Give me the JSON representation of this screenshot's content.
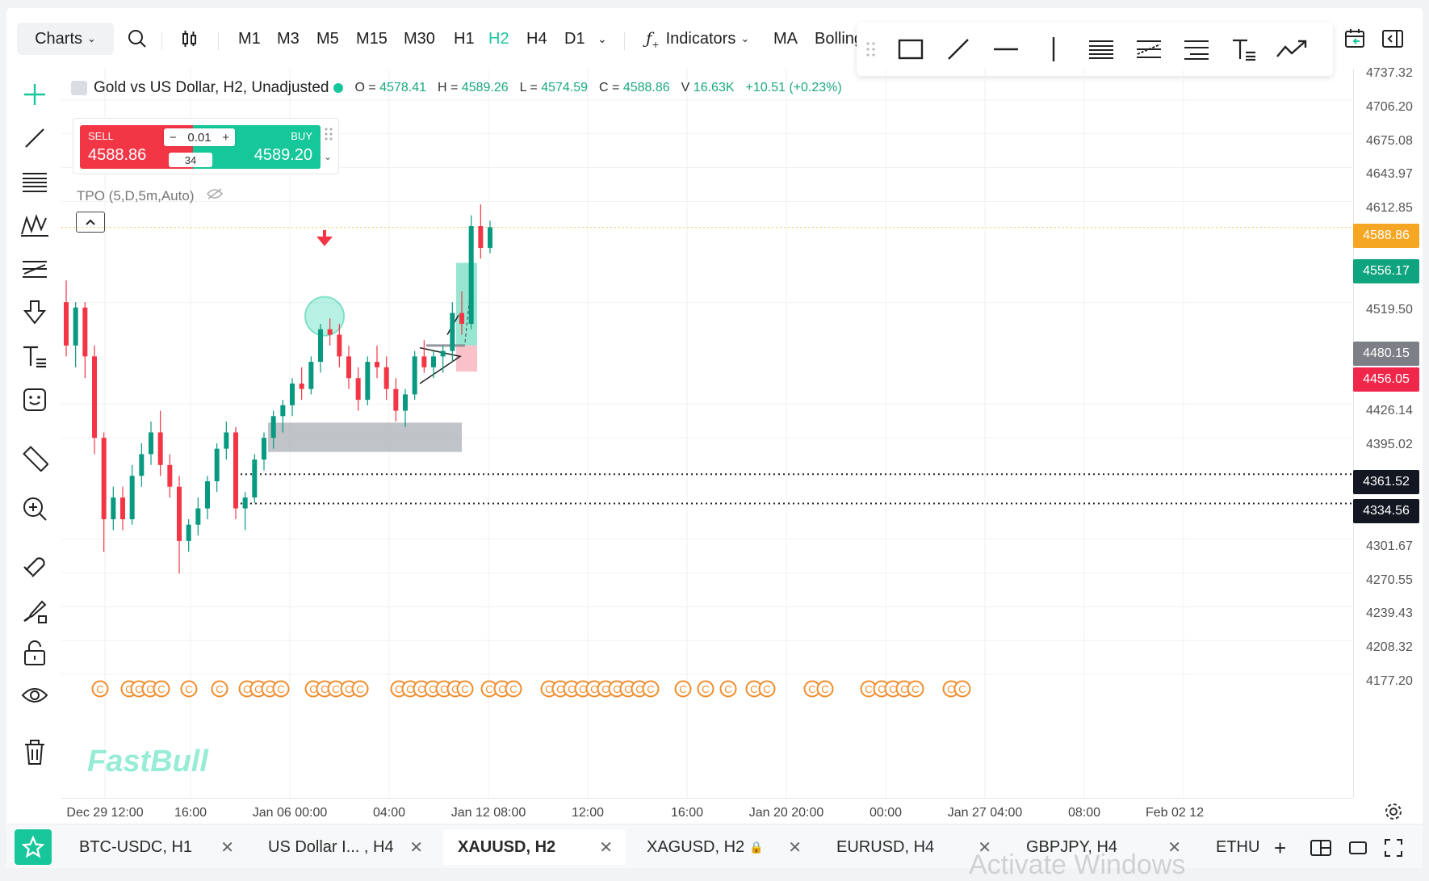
{
  "topbar": {
    "charts_label": "Charts",
    "timeframes": [
      "M1",
      "M3",
      "M5",
      "M15",
      "M30",
      "H1",
      "H2",
      "H4",
      "D1"
    ],
    "active_timeframe": "H2",
    "indicators_label": "Indicators",
    "ma_label": "MA",
    "bollinger_label": "Bolling"
  },
  "legend": {
    "symbol": "Gold vs US Dollar, H2, Unadjusted",
    "open_label": "O =",
    "open": "4578.41",
    "high_label": "H =",
    "high": "4589.26",
    "low_label": "L =",
    "low": "4574.59",
    "close_label": "C =",
    "close": "4588.86",
    "volume_label": "V",
    "volume": "16.63K",
    "change": "+10.51 (+0.23%)"
  },
  "trade": {
    "sell_label": "SELL",
    "sell_price": "4588.86",
    "buy_label": "BUY",
    "buy_price": "4589.20",
    "quantity": "0.01",
    "spread": "34"
  },
  "tpo_label": "TPO (5,D,5m,Auto)",
  "watermark": "FastBull",
  "price_axis": [
    "4737.32",
    "4706.20",
    "4675.08",
    "4643.97",
    "4612.85",
    "4519.50",
    "4426.14",
    "4395.02",
    "4301.67",
    "4270.55",
    "4239.43",
    "4208.32",
    "4177.20"
  ],
  "price_tags": [
    {
      "value": "4588.86",
      "color": "#f5a623"
    },
    {
      "value": "4556.17",
      "color": "#0fa37f"
    },
    {
      "value": "4480.15",
      "color": "#7c7f86"
    },
    {
      "value": "4456.05",
      "color": "#f0264a"
    },
    {
      "value": "4361.52",
      "color": "#131722"
    },
    {
      "value": "4334.56",
      "color": "#131722"
    }
  ],
  "time_axis": [
    "Dec 29 12:00",
    "16:00",
    "Jan 06 00:00",
    "04:00",
    "Jan 12 08:00",
    "12:00",
    "16:00",
    "Jan 20 20:00",
    "00:00",
    "Jan 27 04:00",
    "08:00",
    "Feb 02 12"
  ],
  "tabs": [
    "BTC-USDC, H1",
    "US Dollar I... , H4",
    "XAUUSD, H2",
    "XAGUSD, H2",
    "EURUSD, H4",
    "GBPJPY, H4",
    "ETHU"
  ],
  "active_tab": "XAUUSD, H2",
  "os_watermark": "Activate Windows",
  "colors": {
    "up": "#089981",
    "down": "#f23645",
    "accent": "#1fc7a2"
  },
  "chart_data": {
    "type": "candlestick",
    "title": "Gold vs US Dollar, H2, Unadjusted",
    "ylim": [
      4150,
      4750
    ],
    "candles": [
      [
        4520,
        4540,
        4470,
        4480
      ],
      [
        4480,
        4520,
        4460,
        4515
      ],
      [
        4515,
        4520,
        4450,
        4470
      ],
      [
        4470,
        4480,
        4380,
        4395
      ],
      [
        4395,
        4400,
        4290,
        4320
      ],
      [
        4320,
        4350,
        4310,
        4340
      ],
      [
        4340,
        4350,
        4310,
        4320
      ],
      [
        4320,
        4370,
        4315,
        4360
      ],
      [
        4360,
        4390,
        4350,
        4380
      ],
      [
        4380,
        4410,
        4370,
        4400
      ],
      [
        4400,
        4420,
        4360,
        4370
      ],
      [
        4370,
        4380,
        4340,
        4350
      ],
      [
        4350,
        4360,
        4270,
        4300
      ],
      [
        4300,
        4320,
        4290,
        4315
      ],
      [
        4315,
        4340,
        4305,
        4330
      ],
      [
        4330,
        4360,
        4320,
        4355
      ],
      [
        4355,
        4390,
        4345,
        4385
      ],
      [
        4385,
        4410,
        4375,
        4400
      ],
      [
        4400,
        4405,
        4320,
        4330
      ],
      [
        4330,
        4345,
        4310,
        4340
      ],
      [
        4340,
        4380,
        4335,
        4375
      ],
      [
        4375,
        4400,
        4365,
        4395
      ],
      [
        4395,
        4420,
        4385,
        4415
      ],
      [
        4415,
        4430,
        4400,
        4425
      ],
      [
        4425,
        4450,
        4415,
        4445
      ],
      [
        4445,
        4460,
        4430,
        4440
      ],
      [
        4440,
        4470,
        4435,
        4465
      ],
      [
        4465,
        4500,
        4455,
        4495
      ],
      [
        4495,
        4505,
        4480,
        4490
      ],
      [
        4490,
        4500,
        4460,
        4470
      ],
      [
        4470,
        4480,
        4440,
        4450
      ],
      [
        4450,
        4460,
        4420,
        4430
      ],
      [
        4430,
        4470,
        4425,
        4465
      ],
      [
        4465,
        4480,
        4450,
        4460
      ],
      [
        4460,
        4470,
        4430,
        4440
      ],
      [
        4440,
        4450,
        4410,
        4420
      ],
      [
        4420,
        4440,
        4405,
        4435
      ],
      [
        4435,
        4475,
        4430,
        4470
      ],
      [
        4470,
        4485,
        4455,
        4460
      ],
      [
        4460,
        4475,
        4450,
        4470
      ],
      [
        4470,
        4480,
        4455,
        4475
      ],
      [
        4475,
        4520,
        4465,
        4510
      ],
      [
        4510,
        4530,
        4490,
        4500
      ],
      [
        4500,
        4600,
        4495,
        4590
      ],
      [
        4590,
        4610,
        4560,
        4570
      ],
      [
        4570,
        4595,
        4565,
        4589
      ]
    ]
  }
}
